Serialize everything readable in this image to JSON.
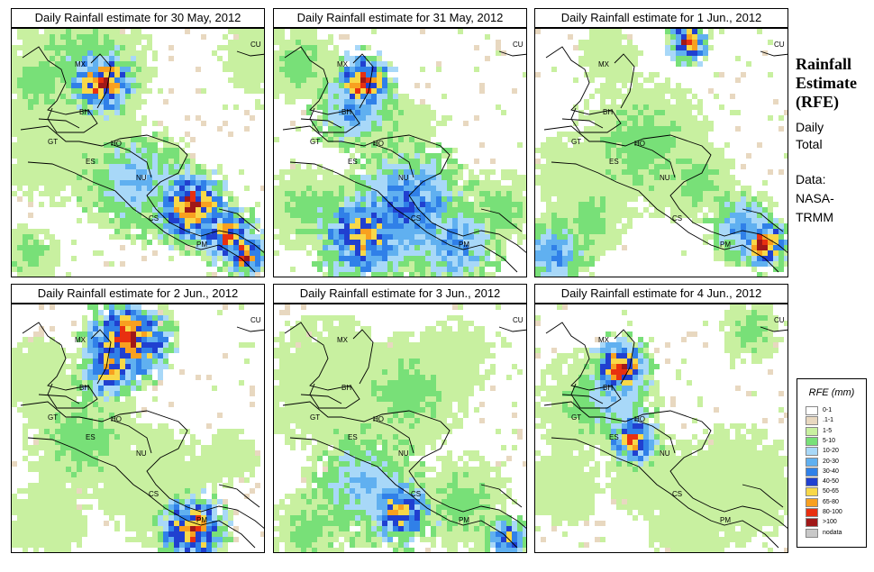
{
  "panels": [
    {
      "title": "Daily Rainfall estimate for  30 May, 2012"
    },
    {
      "title": "Daily Rainfall estimate for  31 May, 2012"
    },
    {
      "title": "Daily Rainfall estimate for  1 Jun., 2012"
    },
    {
      "title": "Daily Rainfall estimate for  2 Jun., 2012"
    },
    {
      "title": "Daily Rainfall estimate for  3 Jun., 2012"
    },
    {
      "title": "Daily Rainfall estimate for  4 Jun., 2012"
    }
  ],
  "region_labels": [
    "CU",
    "MX",
    "BH",
    "GT",
    "HO",
    "ES",
    "NU",
    "CS",
    "PM"
  ],
  "sidebar": {
    "title_lines": [
      "Rainfall",
      "Estimate",
      "(RFE)"
    ],
    "daily_lines": [
      "Daily",
      "Total"
    ],
    "data_lines": [
      "Data:",
      "NASA-",
      "TRMM"
    ]
  },
  "legend": {
    "title": "RFE (mm)",
    "items": [
      {
        "label": "0-1",
        "color": "#ffffff"
      },
      {
        "label": ".1-1",
        "color": "#e8d8c0"
      },
      {
        "label": "1-5",
        "color": "#c8f0a0"
      },
      {
        "label": "5-10",
        "color": "#78e078"
      },
      {
        "label": "10-20",
        "color": "#a8d8f8"
      },
      {
        "label": "20-30",
        "color": "#60b0f0"
      },
      {
        "label": "30-40",
        "color": "#3080e8"
      },
      {
        "label": "40-50",
        "color": "#2040d0"
      },
      {
        "label": "50-65",
        "color": "#f8d848"
      },
      {
        "label": "65-80",
        "color": "#f8a020"
      },
      {
        "label": "80-100",
        "color": "#e83010"
      },
      {
        "label": ">100",
        "color": "#a01818"
      },
      {
        "label": "nodata",
        "color": "#c8c8c8"
      }
    ]
  }
}
